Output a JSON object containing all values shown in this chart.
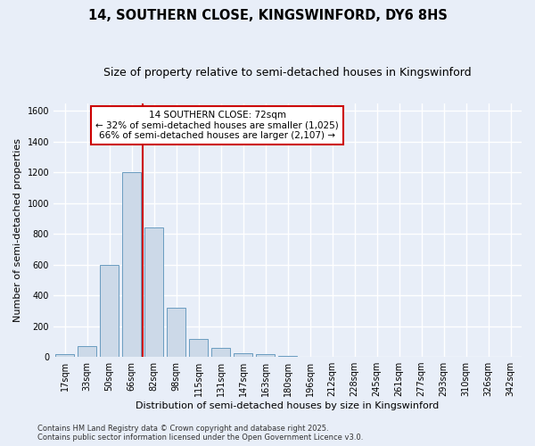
{
  "title": "14, SOUTHERN CLOSE, KINGSWINFORD, DY6 8HS",
  "subtitle": "Size of property relative to semi-detached houses in Kingswinford",
  "xlabel": "Distribution of semi-detached houses by size in Kingswinford",
  "ylabel": "Number of semi-detached properties",
  "categories": [
    "17sqm",
    "33sqm",
    "50sqm",
    "66sqm",
    "82sqm",
    "98sqm",
    "115sqm",
    "131sqm",
    "147sqm",
    "163sqm",
    "180sqm",
    "196sqm",
    "212sqm",
    "228sqm",
    "245sqm",
    "261sqm",
    "277sqm",
    "293sqm",
    "310sqm",
    "326sqm",
    "342sqm"
  ],
  "values": [
    15,
    70,
    600,
    1200,
    840,
    320,
    115,
    60,
    25,
    15,
    5,
    0,
    0,
    0,
    0,
    0,
    0,
    0,
    0,
    0,
    0
  ],
  "bar_color": "#ccd9e8",
  "bar_edge_color": "#6a9cc0",
  "vline_color": "#cc0000",
  "vline_x": 3.5,
  "ylim": [
    0,
    1650
  ],
  "yticks": [
    0,
    200,
    400,
    600,
    800,
    1000,
    1200,
    1400,
    1600
  ],
  "annotation_title": "14 SOUTHERN CLOSE: 72sqm",
  "annotation_line1": "← 32% of semi-detached houses are smaller (1,025)",
  "annotation_line2": "66% of semi-detached houses are larger (2,107) →",
  "annotation_box_color": "white",
  "annotation_box_edge_color": "#cc0000",
  "footnote1": "Contains HM Land Registry data © Crown copyright and database right 2025.",
  "footnote2": "Contains public sector information licensed under the Open Government Licence v3.0.",
  "background_color": "#e8eef8",
  "grid_color": "white",
  "title_fontsize": 10.5,
  "subtitle_fontsize": 9,
  "axis_label_fontsize": 8,
  "tick_fontsize": 7,
  "annotation_fontsize": 7.5,
  "footnote_fontsize": 6
}
